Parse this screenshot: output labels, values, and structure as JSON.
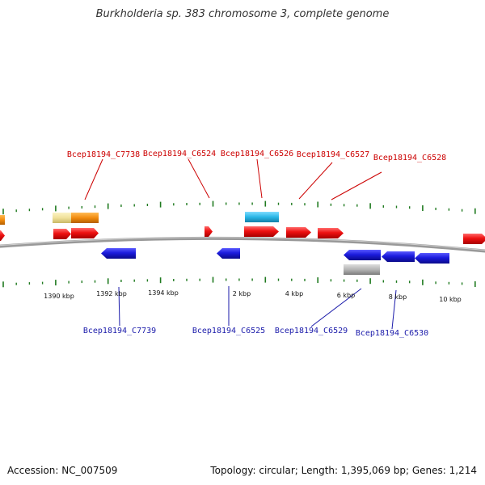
{
  "title": "Burkholderia sp. 383 chromosome 3, complete genome",
  "footer": {
    "accession_label": "Accession: ",
    "accession": "NC_007509",
    "topology_text": "Topology: circular; Length: 1,395,069 bp; Genes: 1,214"
  },
  "colors": {
    "plus_strand_gene": "#ee1111",
    "minus_strand_gene": "#1b1bdd",
    "plus_label": "#cc0000",
    "minus_label": "#1a1aaa",
    "cyan_feature": "#29b6e6",
    "orange_feature": "#f28c0f",
    "pale_feature": "#f0e19a",
    "grey_feature": "#b4b4b4",
    "tick": "#1f7a1f",
    "backbone": "#888888"
  },
  "ticks": {
    "labels": [
      "1390 kbp",
      "1392 kbp",
      "1394 kbp",
      "2 kbp",
      "4 kbp",
      "6 kbp",
      "8 kbp",
      "10 kbp"
    ]
  },
  "genes_plus_labels": [
    "Bcep18194_C7738",
    "Bcep18194_C6524",
    "Bcep18194_C6526",
    "Bcep18194_C6527",
    "Bcep18194_C6528"
  ],
  "genes_minus_labels": [
    "Bcep18194_C7739",
    "Bcep18194_C6525",
    "Bcep18194_C6529",
    "Bcep18194_C6530"
  ]
}
